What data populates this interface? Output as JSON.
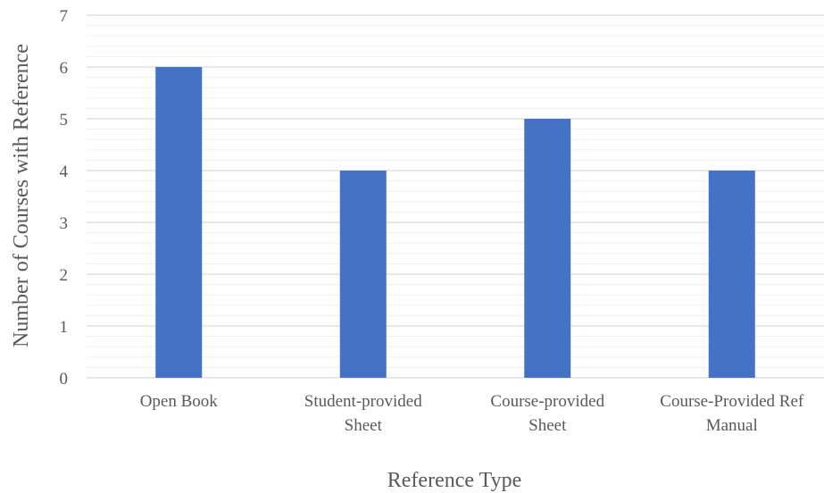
{
  "chart_data": {
    "type": "bar",
    "categories": [
      [
        "Open Book"
      ],
      [
        "Student-provided",
        "Sheet"
      ],
      [
        "Course-provided",
        "Sheet"
      ],
      [
        "Course-Provided Ref",
        "Manual"
      ]
    ],
    "values": [
      6,
      4,
      5,
      4
    ],
    "xlabel": "Reference Type",
    "ylabel": "Number of Courses with Reference",
    "ylim": [
      0,
      7
    ],
    "yticks": [
      0,
      1,
      2,
      3,
      4,
      5,
      6,
      7
    ],
    "minor_gridlines_per_major": 5,
    "grid": true,
    "legend": false,
    "colors": {
      "bar": "#4472C4",
      "major_grid": "#D9D9D9",
      "minor_grid": "#F0F0F0",
      "text": "#595959"
    }
  }
}
